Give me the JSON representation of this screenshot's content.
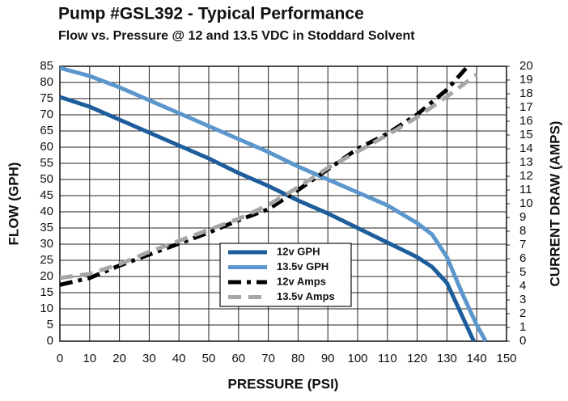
{
  "chart_data": {
    "type": "line",
    "title": "Pump #GSL392 - Typical Performance",
    "subtitle": "Flow vs. Pressure @ 12 and 13.5 VDC in Stoddard Solvent",
    "x_label": "PRESSURE (PSI)",
    "y_label": "FLOW (GPH)",
    "y2_label": "CURRENT DRAW (AMPS)",
    "xlim": [
      0,
      150
    ],
    "xticks": [
      0,
      10,
      20,
      30,
      40,
      50,
      60,
      70,
      80,
      90,
      100,
      110,
      120,
      130,
      140,
      150
    ],
    "ylim": [
      0,
      85
    ],
    "yticks": [
      0,
      5,
      10,
      15,
      20,
      25,
      30,
      35,
      40,
      45,
      50,
      55,
      60,
      65,
      70,
      75,
      80,
      85
    ],
    "y2lim": [
      0,
      20
    ],
    "y2ticks": [
      0,
      1,
      2,
      3,
      4,
      5,
      6,
      7,
      8,
      9,
      10,
      11,
      12,
      13,
      14,
      15,
      16,
      17,
      18,
      19,
      20
    ],
    "grid": true,
    "series": [
      {
        "name": "12v GPH",
        "color": "#1d5d9b",
        "style": "solid",
        "x": [
          0,
          10,
          20,
          30,
          40,
          50,
          60,
          70,
          80,
          90,
          100,
          110,
          120,
          125,
          130,
          135,
          139
        ],
        "values": [
          75.5,
          72.5,
          68.5,
          64.5,
          60.5,
          56.5,
          52,
          48,
          43.5,
          39.5,
          35,
          30.5,
          26,
          23,
          18,
          8,
          0
        ]
      },
      {
        "name": "13.5v GPH",
        "color": "#5b96cd",
        "style": "solid",
        "x": [
          0,
          10,
          20,
          30,
          40,
          50,
          60,
          70,
          80,
          90,
          100,
          110,
          120,
          125,
          130,
          135,
          140,
          143
        ],
        "values": [
          84.5,
          82,
          78.5,
          74.5,
          70.5,
          66.5,
          62.5,
          58.5,
          54,
          50,
          46,
          42,
          36.5,
          33,
          26,
          15,
          5,
          0
        ]
      },
      {
        "name": "12v Amps",
        "color": "#000000",
        "style": "dashdot",
        "axis": "y2",
        "x": [
          0,
          10,
          20,
          30,
          40,
          50,
          60,
          70,
          80,
          90,
          100,
          110,
          120,
          130,
          137
        ],
        "values": [
          4.1,
          4.6,
          5.5,
          6.3,
          7.1,
          7.9,
          8.8,
          9.6,
          11,
          12.5,
          14,
          15.1,
          16.5,
          18.3,
          20
        ]
      },
      {
        "name": "13.5v Amps",
        "color": "#a6a6a6",
        "style": "dashed",
        "axis": "y2",
        "x": [
          0,
          10,
          20,
          30,
          40,
          50,
          60,
          70,
          80,
          90,
          100,
          110,
          120,
          130,
          140
        ],
        "values": [
          4.6,
          4.9,
          5.6,
          6.5,
          7.3,
          8.1,
          8.9,
          9.9,
          11.2,
          12.6,
          13.8,
          15,
          16.3,
          17.8,
          19.4
        ]
      }
    ]
  }
}
